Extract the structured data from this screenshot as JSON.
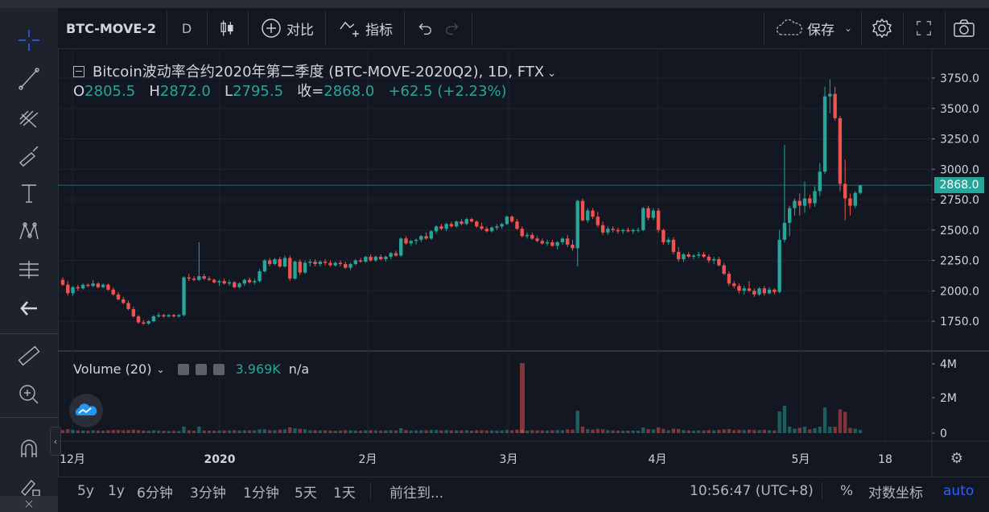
{
  "toolbar": {
    "symbol": "BTC-MOVE-2",
    "interval": "D",
    "compare_label": "对比",
    "indicators_label": "指标",
    "save_label": "保存"
  },
  "legend": {
    "title": "Bitcoin波动率合约2020年第二季度 (BTC-MOVE-2020Q2), 1D, FTX",
    "o_label": "O",
    "o_value": "2805.5",
    "h_label": "H",
    "h_value": "2872.0",
    "l_label": "L",
    "l_value": "2795.5",
    "c_label": "收=",
    "c_value": "2868.0",
    "change": "+62.5 (+2.23%)"
  },
  "volume_legend": {
    "label": "Volume (20)",
    "value": "3.969K",
    "na": "n/a"
  },
  "price_axis": {
    "ticks": [
      "3750.0",
      "3500.0",
      "3250.0",
      "3000.0",
      "2750.0",
      "2500.0",
      "2250.0",
      "2000.0",
      "1750.0"
    ],
    "current_price": "2868.0"
  },
  "volume_axis": {
    "ticks": [
      "4M",
      "2M",
      "0"
    ]
  },
  "time_axis": {
    "ticks": [
      "12月",
      "2020",
      "2月",
      "3月",
      "4月",
      "5月",
      "18"
    ]
  },
  "bottom_bar": {
    "ranges": [
      "5y",
      "1y",
      "6分钟",
      "3分钟",
      "1分钟",
      "5天",
      "1天"
    ],
    "goto": "前往到...",
    "clock": "10:56:47 (UTC+8)",
    "percent": "%",
    "log": "对数坐标",
    "auto": "auto"
  },
  "colors": {
    "up": "#26a69a",
    "down": "#ef5350",
    "accent": "#2962ff",
    "bg": "#131722"
  },
  "chart_data": {
    "type": "candlestick",
    "title": "Bitcoin波动率合约2020年第二季度 (BTC-MOVE-2020Q2), 1D, FTX",
    "ylim": [
      1600,
      3850
    ],
    "points": [
      [
        2090,
        2110,
        2040,
        2050
      ],
      [
        2050,
        2080,
        1960,
        1980
      ],
      [
        1980,
        2040,
        1960,
        2030
      ],
      [
        2030,
        2050,
        2000,
        2020
      ],
      [
        2020,
        2060,
        2010,
        2050
      ],
      [
        2050,
        2060,
        2030,
        2040
      ],
      [
        2040,
        2090,
        2030,
        2060
      ],
      [
        2060,
        2070,
        2020,
        2030
      ],
      [
        2030,
        2060,
        2020,
        2050
      ],
      [
        2050,
        2060,
        2000,
        2010
      ],
      [
        2010,
        2030,
        1960,
        1970
      ],
      [
        1970,
        1990,
        1920,
        1930
      ],
      [
        1930,
        1950,
        1890,
        1900
      ],
      [
        1900,
        1920,
        1840,
        1850
      ],
      [
        1850,
        1870,
        1780,
        1790
      ],
      [
        1790,
        1800,
        1730,
        1740
      ],
      [
        1740,
        1760,
        1720,
        1730
      ],
      [
        1730,
        1760,
        1720,
        1750
      ],
      [
        1750,
        1800,
        1740,
        1790
      ],
      [
        1790,
        1820,
        1780,
        1800
      ],
      [
        1800,
        1810,
        1780,
        1790
      ],
      [
        1790,
        1810,
        1780,
        1800
      ],
      [
        1800,
        1810,
        1780,
        1790
      ],
      [
        1790,
        1810,
        1780,
        1800
      ],
      [
        1800,
        2120,
        1790,
        2110
      ],
      [
        2110,
        2140,
        2080,
        2100
      ],
      [
        2100,
        2120,
        2080,
        2090
      ],
      [
        2090,
        2400,
        2080,
        2120
      ],
      [
        2120,
        2140,
        2090,
        2100
      ],
      [
        2100,
        2120,
        2080,
        2090
      ],
      [
        2090,
        2100,
        2060,
        2070
      ],
      [
        2070,
        2090,
        2040,
        2080
      ],
      [
        2080,
        2100,
        2050,
        2060
      ],
      [
        2060,
        2090,
        2040,
        2070
      ],
      [
        2070,
        2080,
        2020,
        2030
      ],
      [
        2030,
        2070,
        2020,
        2060
      ],
      [
        2060,
        2100,
        2040,
        2090
      ],
      [
        2090,
        2110,
        2060,
        2070
      ],
      [
        2070,
        2100,
        2050,
        2080
      ],
      [
        2080,
        2180,
        2070,
        2160
      ],
      [
        2160,
        2260,
        2150,
        2250
      ],
      [
        2250,
        2270,
        2200,
        2220
      ],
      [
        2220,
        2270,
        2210,
        2260
      ],
      [
        2260,
        2280,
        2190,
        2200
      ],
      [
        2200,
        2290,
        2190,
        2270
      ],
      [
        2270,
        2290,
        2080,
        2100
      ],
      [
        2100,
        2250,
        2090,
        2240
      ],
      [
        2240,
        2260,
        2130,
        2150
      ],
      [
        2150,
        2250,
        2140,
        2230
      ],
      [
        2230,
        2260,
        2200,
        2240
      ],
      [
        2240,
        2260,
        2200,
        2220
      ],
      [
        2220,
        2250,
        2200,
        2240
      ],
      [
        2240,
        2260,
        2210,
        2230
      ],
      [
        2230,
        2250,
        2200,
        2210
      ],
      [
        2210,
        2240,
        2200,
        2230
      ],
      [
        2230,
        2250,
        2200,
        2220
      ],
      [
        2220,
        2240,
        2180,
        2190
      ],
      [
        2190,
        2230,
        2170,
        2220
      ],
      [
        2220,
        2260,
        2210,
        2250
      ],
      [
        2250,
        2270,
        2230,
        2240
      ],
      [
        2240,
        2290,
        2230,
        2280
      ],
      [
        2280,
        2300,
        2240,
        2250
      ],
      [
        2250,
        2290,
        2240,
        2280
      ],
      [
        2280,
        2300,
        2250,
        2260
      ],
      [
        2260,
        2290,
        2240,
        2280
      ],
      [
        2280,
        2320,
        2260,
        2310
      ],
      [
        2310,
        2330,
        2280,
        2290
      ],
      [
        2290,
        2440,
        2280,
        2430
      ],
      [
        2430,
        2450,
        2380,
        2390
      ],
      [
        2390,
        2420,
        2370,
        2410
      ],
      [
        2410,
        2430,
        2380,
        2420
      ],
      [
        2420,
        2460,
        2400,
        2450
      ],
      [
        2450,
        2480,
        2420,
        2430
      ],
      [
        2430,
        2500,
        2420,
        2490
      ],
      [
        2490,
        2540,
        2470,
        2530
      ],
      [
        2530,
        2550,
        2500,
        2510
      ],
      [
        2510,
        2560,
        2490,
        2550
      ],
      [
        2550,
        2570,
        2520,
        2530
      ],
      [
        2530,
        2580,
        2520,
        2570
      ],
      [
        2570,
        2590,
        2540,
        2550
      ],
      [
        2550,
        2600,
        2540,
        2590
      ],
      [
        2590,
        2600,
        2560,
        2570
      ],
      [
        2570,
        2580,
        2520,
        2530
      ],
      [
        2530,
        2560,
        2500,
        2510
      ],
      [
        2510,
        2530,
        2480,
        2490
      ],
      [
        2490,
        2530,
        2480,
        2520
      ],
      [
        2520,
        2550,
        2500,
        2530
      ],
      [
        2530,
        2560,
        2510,
        2550
      ],
      [
        2550,
        2620,
        2540,
        2610
      ],
      [
        2610,
        2620,
        2560,
        2570
      ],
      [
        2570,
        2590,
        2500,
        2510
      ],
      [
        2510,
        2530,
        2440,
        2450
      ],
      [
        2450,
        2480,
        2430,
        2460
      ],
      [
        2460,
        2480,
        2420,
        2430
      ],
      [
        2430,
        2450,
        2400,
        2410
      ],
      [
        2410,
        2430,
        2380,
        2390
      ],
      [
        2390,
        2420,
        2370,
        2400
      ],
      [
        2400,
        2420,
        2360,
        2370
      ],
      [
        2370,
        2410,
        2340,
        2400
      ],
      [
        2400,
        2440,
        2380,
        2430
      ],
      [
        2430,
        2460,
        2360,
        2380
      ],
      [
        2380,
        2420,
        2330,
        2350
      ],
      [
        2350,
        2750,
        2200,
        2740
      ],
      [
        2740,
        2760,
        2570,
        2580
      ],
      [
        2580,
        2680,
        2560,
        2660
      ],
      [
        2660,
        2680,
        2590,
        2610
      ],
      [
        2610,
        2650,
        2520,
        2540
      ],
      [
        2540,
        2570,
        2460,
        2480
      ],
      [
        2480,
        2530,
        2460,
        2510
      ],
      [
        2510,
        2530,
        2480,
        2500
      ],
      [
        2500,
        2520,
        2470,
        2490
      ],
      [
        2490,
        2510,
        2470,
        2500
      ],
      [
        2500,
        2520,
        2480,
        2490
      ],
      [
        2490,
        2510,
        2470,
        2500
      ],
      [
        2500,
        2520,
        2480,
        2500
      ],
      [
        2500,
        2690,
        2490,
        2680
      ],
      [
        2680,
        2700,
        2580,
        2600
      ],
      [
        2600,
        2680,
        2580,
        2660
      ],
      [
        2660,
        2680,
        2480,
        2500
      ],
      [
        2500,
        2510,
        2380,
        2400
      ],
      [
        2400,
        2440,
        2380,
        2420
      ],
      [
        2420,
        2440,
        2300,
        2320
      ],
      [
        2320,
        2360,
        2240,
        2260
      ],
      [
        2260,
        2310,
        2240,
        2300
      ],
      [
        2300,
        2320,
        2270,
        2280
      ],
      [
        2280,
        2300,
        2260,
        2290
      ],
      [
        2290,
        2320,
        2270,
        2300
      ],
      [
        2300,
        2320,
        2270,
        2280
      ],
      [
        2280,
        2300,
        2230,
        2250
      ],
      [
        2250,
        2280,
        2220,
        2260
      ],
      [
        2260,
        2280,
        2200,
        2210
      ],
      [
        2210,
        2230,
        2130,
        2140
      ],
      [
        2140,
        2160,
        2040,
        2060
      ],
      [
        2060,
        2080,
        2020,
        2040
      ],
      [
        2040,
        2060,
        1980,
        2000
      ],
      [
        2000,
        2040,
        1970,
        2020
      ],
      [
        2020,
        2080,
        1990,
        2000
      ],
      [
        2000,
        2020,
        1950,
        1970
      ],
      [
        1970,
        2030,
        1960,
        2020
      ],
      [
        2020,
        2040,
        1960,
        1980
      ],
      [
        1980,
        2030,
        1970,
        2010
      ],
      [
        2010,
        2020,
        1970,
        1990
      ],
      [
        1990,
        2500,
        1980,
        2420
      ],
      [
        2420,
        3200,
        2400,
        2560
      ],
      [
        2560,
        2700,
        2450,
        2680
      ],
      [
        2680,
        2760,
        2620,
        2740
      ],
      [
        2740,
        2800,
        2620,
        2700
      ],
      [
        2700,
        2900,
        2640,
        2760
      ],
      [
        2760,
        2790,
        2680,
        2720
      ],
      [
        2720,
        2860,
        2690,
        2820
      ],
      [
        2820,
        3050,
        2780,
        2980
      ],
      [
        2980,
        3680,
        2960,
        3600
      ],
      [
        3600,
        3740,
        3460,
        3620
      ],
      [
        3620,
        3680,
        3400,
        3420
      ],
      [
        3420,
        3440,
        2820,
        2880
      ],
      [
        2880,
        3080,
        2580,
        2760
      ],
      [
        2760,
        2800,
        2620,
        2700
      ],
      [
        2700,
        2820,
        2680,
        2805.5
      ],
      [
        2805.5,
        2872,
        2795.5,
        2868
      ]
    ],
    "volume_note": "Volume (20)"
  }
}
